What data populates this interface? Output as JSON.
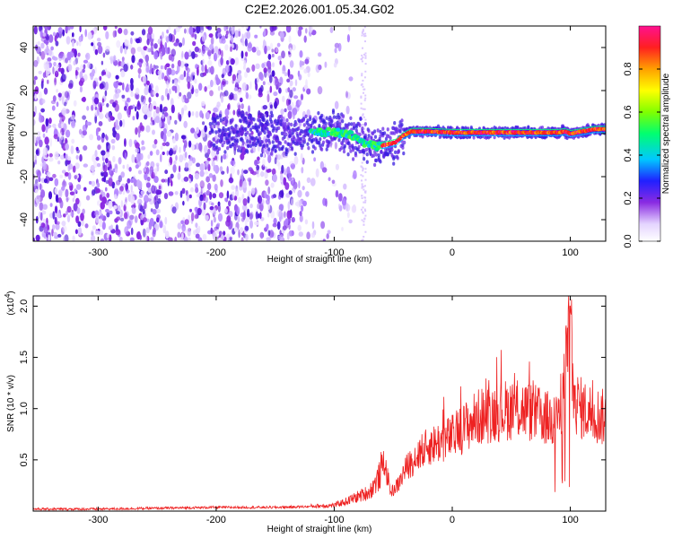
{
  "chart_data": [
    {
      "id": "spectrogram",
      "type": "heatmap",
      "title": "C2E2.2026.001.05.34.G02",
      "xlabel": "Height of straight line (km)",
      "ylabel": "Frequency (Hz)",
      "xlim": [
        -355,
        130
      ],
      "ylim": [
        -50,
        50
      ],
      "xticks": [
        -300,
        -200,
        -100,
        0,
        100
      ],
      "yticks": [
        -40,
        -20,
        0,
        20,
        40
      ],
      "colorbar": {
        "label": "Normalized spectral amplitude",
        "range": [
          0.0,
          1.0
        ],
        "ticks": [
          0.0,
          0.2,
          0.4,
          0.6,
          0.8
        ],
        "colors": [
          "#ffffff",
          "#e8d8ff",
          "#8a2be2",
          "#2020ff",
          "#00d0ff",
          "#00ff70",
          "#80ff00",
          "#ffff00",
          "#ffa000",
          "#ff2020",
          "#ff1090"
        ]
      },
      "frequency_track": {
        "x": [
          -120,
          -100,
          -85,
          -75,
          -65,
          -55,
          -48,
          -42,
          -35,
          -20,
          0,
          20,
          40,
          60,
          80,
          90,
          95,
          100,
          110,
          120,
          130
        ],
        "y": [
          0,
          1,
          -1,
          -4,
          -6,
          -5,
          -4,
          -1,
          1,
          1,
          0.5,
          0.5,
          0.5,
          0.5,
          0.5,
          0.5,
          1,
          0,
          1,
          2,
          2
        ]
      }
    },
    {
      "id": "snr",
      "type": "line",
      "xlabel": "Height of straight line (km)",
      "ylabel": "SNR (10 * v/v)",
      "yscale_label": "(x10",
      "yscale_exp": "4",
      "yscale_close": ")",
      "xlim": [
        -355,
        130
      ],
      "ylim": [
        0,
        2.1
      ],
      "xticks": [
        -300,
        -200,
        -100,
        0,
        100
      ],
      "yticks": [
        0.5,
        1.0,
        1.5,
        2.0
      ],
      "ytick_labels": [
        "0.5",
        "1.0",
        "1.5",
        "2.0"
      ],
      "line_color": "#ee2222",
      "envelope": {
        "x": [
          -355,
          -300,
          -250,
          -200,
          -150,
          -120,
          -100,
          -90,
          -80,
          -70,
          -62,
          -58,
          -52,
          -45,
          -40,
          -30,
          -20,
          -10,
          0,
          10,
          20,
          30,
          40,
          50,
          60,
          70,
          80,
          90,
          95,
          100,
          103,
          110,
          120,
          130
        ],
        "y": [
          0.02,
          0.02,
          0.03,
          0.04,
          0.04,
          0.05,
          0.06,
          0.1,
          0.15,
          0.2,
          0.35,
          0.55,
          0.2,
          0.3,
          0.45,
          0.6,
          0.7,
          0.75,
          0.8,
          0.9,
          1.0,
          1.05,
          1.08,
          1.1,
          1.1,
          1.05,
          1.0,
          0.98,
          1.4,
          2.05,
          1.2,
          1.1,
          1.05,
          1.0
        ]
      }
    }
  ]
}
